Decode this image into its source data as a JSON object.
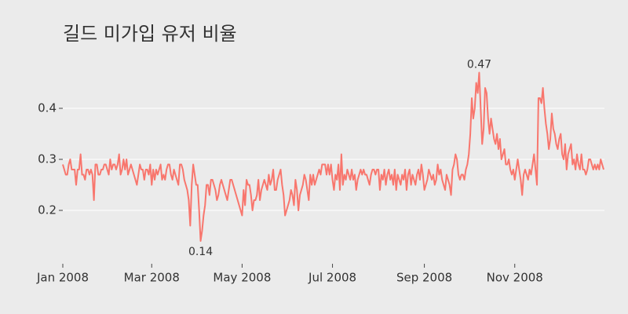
{
  "chart_data": {
    "type": "line",
    "title": "길드 미가입 유저 비율",
    "color": "#f8766d",
    "grid": true,
    "xlim": [
      0,
      365
    ],
    "xticks": [
      {
        "value": 0,
        "label": "Jan 2008"
      },
      {
        "value": 60,
        "label": "Mar 2008"
      },
      {
        "value": 121,
        "label": "May 2008"
      },
      {
        "value": 182,
        "label": "Jul 2008"
      },
      {
        "value": 244,
        "label": "Sep 2008"
      },
      {
        "value": 305,
        "label": "Nov 2008"
      }
    ],
    "ylim": [
      0.1,
      0.5
    ],
    "yticks": [
      0.2,
      0.3,
      0.4
    ],
    "values": [
      0.29,
      0.28,
      0.27,
      0.27,
      0.29,
      0.3,
      0.28,
      0.28,
      0.28,
      0.25,
      0.28,
      0.28,
      0.31,
      0.27,
      0.27,
      0.26,
      0.28,
      0.28,
      0.27,
      0.28,
      0.27,
      0.22,
      0.29,
      0.29,
      0.27,
      0.27,
      0.28,
      0.28,
      0.29,
      0.29,
      0.28,
      0.27,
      0.3,
      0.28,
      0.29,
      0.29,
      0.28,
      0.29,
      0.31,
      0.27,
      0.28,
      0.3,
      0.28,
      0.3,
      0.27,
      0.28,
      0.29,
      0.28,
      0.27,
      0.26,
      0.25,
      0.27,
      0.29,
      0.28,
      0.28,
      0.26,
      0.28,
      0.28,
      0.27,
      0.29,
      0.25,
      0.28,
      0.26,
      0.28,
      0.27,
      0.28,
      0.29,
      0.26,
      0.27,
      0.26,
      0.28,
      0.29,
      0.29,
      0.27,
      0.26,
      0.28,
      0.27,
      0.26,
      0.25,
      0.29,
      0.29,
      0.28,
      0.26,
      0.25,
      0.24,
      0.22,
      0.17,
      0.25,
      0.29,
      0.27,
      0.25,
      0.25,
      0.2,
      0.14,
      0.16,
      0.19,
      0.21,
      0.25,
      0.25,
      0.23,
      0.26,
      0.26,
      0.25,
      0.24,
      0.22,
      0.23,
      0.25,
      0.26,
      0.25,
      0.24,
      0.23,
      0.22,
      0.24,
      0.26,
      0.26,
      0.25,
      0.24,
      0.23,
      0.22,
      0.21,
      0.2,
      0.19,
      0.24,
      0.21,
      0.26,
      0.25,
      0.25,
      0.23,
      0.2,
      0.22,
      0.22,
      0.23,
      0.26,
      0.22,
      0.24,
      0.25,
      0.26,
      0.25,
      0.24,
      0.27,
      0.25,
      0.26,
      0.28,
      0.24,
      0.24,
      0.26,
      0.27,
      0.28,
      0.25,
      0.23,
      0.19,
      0.2,
      0.21,
      0.22,
      0.24,
      0.23,
      0.21,
      0.26,
      0.24,
      0.2,
      0.23,
      0.24,
      0.25,
      0.27,
      0.26,
      0.24,
      0.22,
      0.27,
      0.25,
      0.27,
      0.25,
      0.26,
      0.27,
      0.28,
      0.27,
      0.29,
      0.29,
      0.29,
      0.27,
      0.29,
      0.27,
      0.29,
      0.26,
      0.24,
      0.27,
      0.26,
      0.29,
      0.24,
      0.31,
      0.25,
      0.27,
      0.26,
      0.28,
      0.27,
      0.26,
      0.28,
      0.26,
      0.27,
      0.24,
      0.26,
      0.27,
      0.28,
      0.27,
      0.28,
      0.27,
      0.27,
      0.26,
      0.25,
      0.27,
      0.28,
      0.28,
      0.27,
      0.28,
      0.28,
      0.24,
      0.27,
      0.26,
      0.28,
      0.25,
      0.27,
      0.28,
      0.26,
      0.27,
      0.25,
      0.28,
      0.24,
      0.27,
      0.26,
      0.25,
      0.27,
      0.26,
      0.28,
      0.24,
      0.27,
      0.28,
      0.25,
      0.27,
      0.26,
      0.25,
      0.27,
      0.28,
      0.26,
      0.29,
      0.27,
      0.24,
      0.25,
      0.26,
      0.28,
      0.27,
      0.26,
      0.27,
      0.25,
      0.26,
      0.29,
      0.27,
      0.28,
      0.26,
      0.25,
      0.24,
      0.27,
      0.26,
      0.25,
      0.23,
      0.28,
      0.29,
      0.31,
      0.3,
      0.27,
      0.26,
      0.27,
      0.27,
      0.26,
      0.28,
      0.29,
      0.31,
      0.35,
      0.42,
      0.38,
      0.4,
      0.45,
      0.43,
      0.47,
      0.4,
      0.33,
      0.36,
      0.44,
      0.43,
      0.38,
      0.35,
      0.38,
      0.36,
      0.34,
      0.33,
      0.35,
      0.32,
      0.34,
      0.3,
      0.31,
      0.32,
      0.29,
      0.29,
      0.3,
      0.28,
      0.27,
      0.28,
      0.26,
      0.28,
      0.3,
      0.28,
      0.26,
      0.23,
      0.27,
      0.28,
      0.27,
      0.26,
      0.28,
      0.27,
      0.29,
      0.31,
      0.28,
      0.25,
      0.42,
      0.42,
      0.41,
      0.44,
      0.4,
      0.37,
      0.35,
      0.32,
      0.34,
      0.39,
      0.36,
      0.35,
      0.33,
      0.32,
      0.34,
      0.35,
      0.31,
      0.3,
      0.33,
      0.28,
      0.31,
      0.32,
      0.33,
      0.29,
      0.3,
      0.28,
      0.31,
      0.29,
      0.28,
      0.31,
      0.28,
      0.28,
      0.27,
      0.28,
      0.3,
      0.3,
      0.29,
      0.28,
      0.29,
      0.28,
      0.29,
      0.28,
      0.3,
      0.29,
      0.28
    ],
    "value_labels": [
      null,
      null,
      null,
      null,
      null,
      null,
      null,
      null,
      null,
      null,
      null,
      null,
      null,
      null,
      null,
      null,
      null,
      null,
      null,
      null,
      null,
      null,
      null,
      null,
      null,
      null,
      null,
      null,
      null,
      null,
      null,
      null,
      null,
      null,
      null,
      null,
      null,
      null,
      null,
      null,
      null,
      null,
      null,
      null,
      null,
      null,
      null,
      null,
      null,
      null,
      null,
      null,
      null,
      null,
      null,
      null,
      null,
      null,
      null,
      null,
      null,
      null,
      null,
      null,
      null,
      null,
      null,
      null,
      null,
      null,
      null,
      null,
      null,
      null,
      null,
      null,
      null,
      null,
      null,
      null,
      null,
      null,
      null,
      null,
      null,
      null,
      null,
      null,
      null,
      null,
      null,
      null,
      null,
      "0.14",
      null,
      null,
      null,
      null,
      null,
      null,
      null,
      null,
      null,
      null,
      null,
      null,
      null,
      null,
      null,
      null,
      null,
      null,
      null,
      null,
      null,
      null,
      null,
      null,
      null,
      null,
      null,
      null,
      null,
      null,
      null,
      null,
      null,
      null,
      null,
      null,
      null,
      null,
      null,
      null,
      null,
      null,
      null,
      null,
      null,
      null,
      null,
      null,
      null,
      null,
      null,
      null,
      null,
      null,
      null,
      null,
      null,
      null,
      null,
      null,
      null,
      null,
      null,
      null,
      null,
      null,
      null,
      null,
      null,
      null,
      null,
      null,
      null,
      null,
      null,
      null,
      null,
      null,
      null,
      null,
      null,
      null,
      null,
      null,
      null,
      null,
      null,
      null,
      null,
      null,
      null,
      null,
      null,
      null,
      null,
      null,
      null,
      null,
      null,
      null,
      null,
      null,
      null,
      null,
      null,
      null,
      null,
      null,
      null,
      null,
      null,
      null,
      null,
      null,
      null,
      null,
      null,
      null,
      null,
      null,
      null,
      null,
      null,
      null,
      null,
      null,
      null,
      null,
      null,
      null,
      null,
      null,
      null,
      null,
      null,
      null,
      null,
      null,
      null,
      null,
      null,
      null,
      null,
      null,
      null,
      null,
      null,
      null,
      null,
      null,
      null,
      null,
      null,
      null,
      null,
      null,
      null,
      null,
      null,
      null,
      null,
      null,
      null,
      null,
      null,
      null,
      null,
      null,
      null,
      null,
      null,
      null,
      null,
      null,
      null,
      null,
      null,
      null,
      null,
      null,
      null,
      null,
      null,
      null,
      null,
      null,
      null,
      "0.47",
      null,
      null,
      null,
      null,
      null,
      null,
      null,
      null,
      null,
      null,
      null,
      null,
      null,
      null,
      null,
      null,
      null,
      null,
      null,
      null,
      null,
      null,
      null,
      null,
      null,
      null,
      null,
      null,
      null,
      null,
      null,
      null,
      null,
      null,
      null,
      null,
      null,
      null,
      null,
      null,
      null,
      null,
      null,
      null,
      null,
      null,
      null,
      null,
      null,
      null,
      null,
      null,
      null,
      null,
      null,
      null,
      null,
      null,
      null,
      null,
      null,
      null,
      null,
      null,
      null,
      null,
      null,
      null,
      null,
      null,
      null,
      null,
      null,
      null,
      null,
      null,
      null,
      null,
      null,
      null,
      null,
      null,
      null,
      null
    ]
  }
}
